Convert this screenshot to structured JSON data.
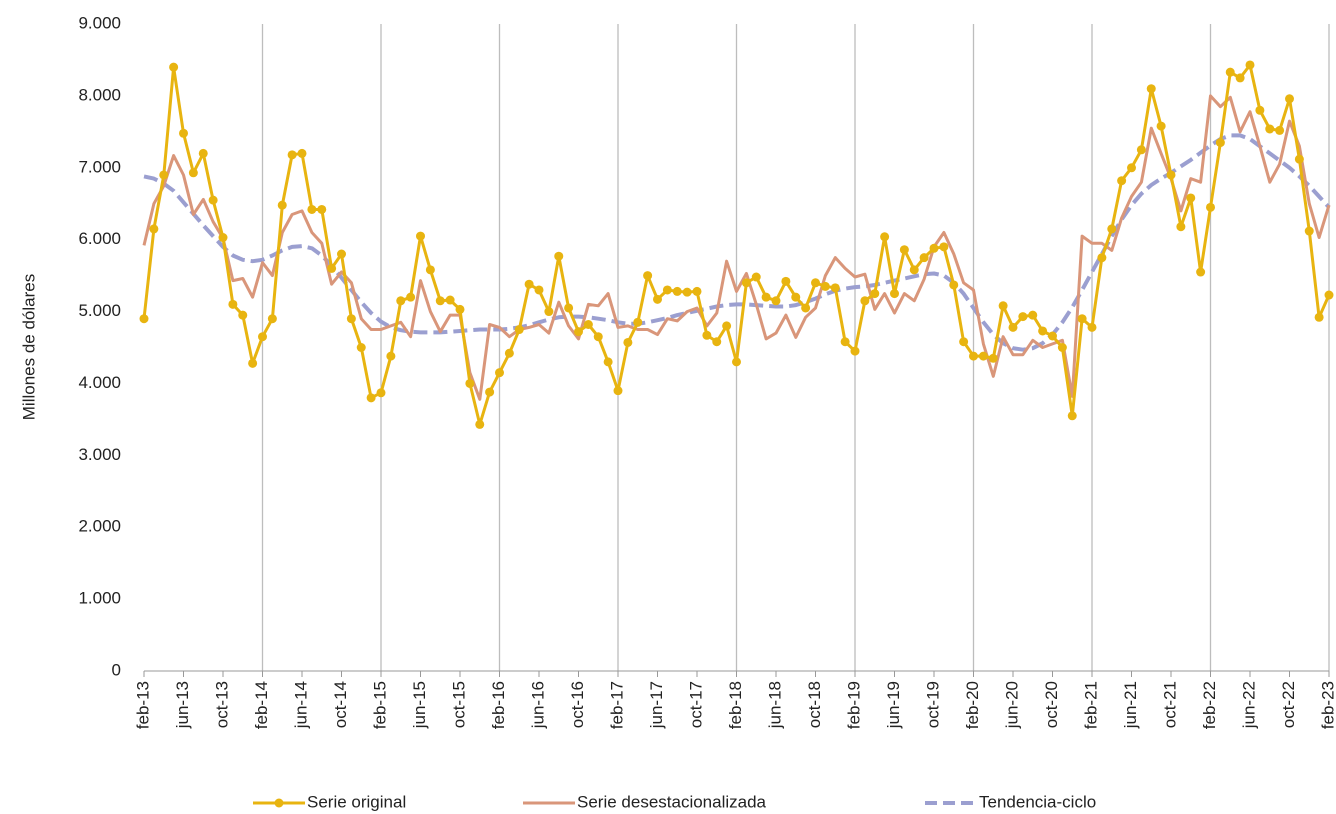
{
  "chart_data": {
    "type": "line",
    "y_label": "Millones de dólares",
    "categories": [
      "feb-13",
      null,
      null,
      null,
      "jun-13",
      null,
      null,
      null,
      "oct-13",
      null,
      null,
      null,
      "feb-14",
      null,
      null,
      null,
      "jun-14",
      null,
      null,
      null,
      "oct-14",
      null,
      null,
      null,
      "feb-15",
      null,
      null,
      null,
      "jun-15",
      null,
      null,
      null,
      "oct-15",
      null,
      null,
      null,
      "feb-16",
      null,
      null,
      null,
      "jun-16",
      null,
      null,
      null,
      "oct-16",
      null,
      null,
      null,
      "feb-17",
      null,
      null,
      null,
      "jun-17",
      null,
      null,
      null,
      "oct-17",
      null,
      null,
      null,
      "feb-18",
      null,
      null,
      null,
      "jun-18",
      null,
      null,
      null,
      "oct-18",
      null,
      null,
      null,
      "feb-19",
      null,
      null,
      null,
      "jun-19",
      null,
      null,
      null,
      "oct-19",
      null,
      null,
      null,
      "feb-20",
      null,
      null,
      null,
      "jun-20",
      null,
      null,
      null,
      "oct-20",
      null,
      null,
      null,
      "feb-21",
      null,
      null,
      null,
      "jun-21",
      null,
      null,
      null,
      "oct-21",
      null,
      null,
      null,
      "feb-22",
      null,
      null,
      null,
      "jun-22",
      null,
      null,
      null,
      "oct-22",
      null,
      null,
      null,
      "feb-23"
    ],
    "series": [
      {
        "name": "Serie original",
        "color": "#e8b410",
        "markers": true,
        "dashed": false,
        "values": [
          4900,
          6150,
          6900,
          8400,
          7480,
          6930,
          7200,
          6550,
          6030,
          5100,
          4950,
          4280,
          4650,
          4900,
          6480,
          7180,
          7200,
          6420,
          6420,
          5600,
          5800,
          4900,
          4500,
          3800,
          3870,
          4380,
          5150,
          5200,
          6050,
          5580,
          5150,
          5160,
          5030,
          4000,
          3430,
          3880,
          4150,
          4420,
          4750,
          5380,
          5300,
          5000,
          5770,
          5050,
          4720,
          4820,
          4650,
          4300,
          3900,
          4570,
          4850,
          5500,
          5170,
          5300,
          5280,
          5270,
          5280,
          4670,
          4580,
          4800,
          4300,
          5400,
          5480,
          5200,
          5150,
          5420,
          5200,
          5050,
          5400,
          5350,
          5330,
          4580,
          4450,
          5150,
          5250,
          6040,
          5250,
          5860,
          5580,
          5750,
          5880,
          5900,
          5370,
          4580,
          4380,
          4380,
          4350,
          5080,
          4780,
          4930,
          4950,
          4730,
          4660,
          4500,
          3550,
          4900,
          4780,
          5750,
          6150,
          6820,
          7000,
          7250,
          8100,
          7580,
          6900,
          6180,
          6580,
          5550,
          6450,
          7350,
          8330,
          8250,
          8430,
          7800,
          7540,
          7520,
          7960,
          7120,
          6120,
          4920,
          5230
        ]
      },
      {
        "name": "Serie desestacionalizada",
        "color": "#d9967a",
        "markers": false,
        "dashed": false,
        "values": [
          5920,
          6500,
          6750,
          7170,
          6900,
          6350,
          6560,
          6250,
          6020,
          5430,
          5460,
          5200,
          5680,
          5500,
          6100,
          6350,
          6400,
          6100,
          5950,
          5380,
          5550,
          5400,
          4900,
          4750,
          4750,
          4800,
          4850,
          4650,
          5430,
          5000,
          4720,
          4950,
          4950,
          4150,
          3780,
          4820,
          4780,
          4650,
          4750,
          4780,
          4820,
          4700,
          5130,
          4800,
          4620,
          5100,
          5080,
          5250,
          4780,
          4800,
          4750,
          4750,
          4680,
          4900,
          4870,
          5000,
          5050,
          4800,
          4980,
          5700,
          5280,
          5530,
          5100,
          4620,
          4700,
          4950,
          4640,
          4920,
          5050,
          5500,
          5750,
          5600,
          5480,
          5520,
          5030,
          5250,
          4980,
          5250,
          5150,
          5450,
          5900,
          6100,
          5800,
          5400,
          5300,
          4550,
          4100,
          4650,
          4400,
          4400,
          4600,
          4500,
          4550,
          4600,
          3820,
          6050,
          5950,
          5950,
          5850,
          6300,
          6600,
          6800,
          7550,
          7200,
          6850,
          6400,
          6850,
          6800,
          8000,
          7850,
          7980,
          7500,
          7780,
          7300,
          6800,
          7050,
          7650,
          7300,
          6500,
          6030,
          6480
        ]
      },
      {
        "name": "Tendencia-ciclo",
        "color": "#9b9fd0",
        "markers": false,
        "dashed": true,
        "values": [
          6880,
          6850,
          6780,
          6680,
          6520,
          6360,
          6200,
          6050,
          5900,
          5780,
          5720,
          5700,
          5720,
          5780,
          5850,
          5900,
          5910,
          5880,
          5780,
          5640,
          5470,
          5300,
          5130,
          4980,
          4860,
          4780,
          4740,
          4720,
          4710,
          4710,
          4710,
          4720,
          4730,
          4740,
          4750,
          4750,
          4750,
          4760,
          4780,
          4810,
          4850,
          4890,
          4920,
          4930,
          4930,
          4920,
          4900,
          4880,
          4850,
          4830,
          4830,
          4850,
          4880,
          4910,
          4950,
          4980,
          5010,
          5040,
          5070,
          5090,
          5100,
          5100,
          5090,
          5080,
          5070,
          5070,
          5090,
          5130,
          5180,
          5240,
          5290,
          5320,
          5340,
          5350,
          5370,
          5400,
          5430,
          5460,
          5490,
          5520,
          5530,
          5500,
          5400,
          5250,
          5050,
          4850,
          4680,
          4560,
          4490,
          4470,
          4490,
          4560,
          4680,
          4850,
          5060,
          5300,
          5550,
          5800,
          6050,
          6280,
          6480,
          6640,
          6760,
          6850,
          6930,
          7020,
          7110,
          7210,
          7310,
          7400,
          7450,
          7450,
          7400,
          7300,
          7200,
          7100,
          7000,
          6880,
          6750,
          6600,
          6450
        ]
      }
    ],
    "ylim": [
      0,
      9000
    ],
    "yticks": [
      0,
      {
        "value": 1000,
        "label": "1.000"
      },
      {
        "value": 2000,
        "label": "2.000"
      },
      {
        "value": 3000,
        "label": "3.000"
      },
      {
        "value": 4000,
        "label": "4.000"
      },
      {
        "value": 5000,
        "label": "5.000"
      },
      {
        "value": 6000,
        "label": "6.000"
      },
      {
        "value": 7000,
        "label": "7.000"
      },
      {
        "value": 8000,
        "label": "8.000"
      },
      {
        "value": 9000,
        "label": "9.000"
      }
    ],
    "grid": "x",
    "grid_every": 12,
    "legend": "bottom"
  }
}
